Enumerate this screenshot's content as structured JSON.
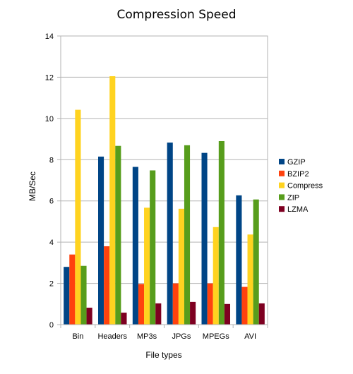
{
  "chart_data": {
    "type": "bar",
    "title": "Compression Speed",
    "xlabel": "File types",
    "ylabel": "MB/Sec",
    "ylim": [
      0,
      14
    ],
    "yticks": [
      0,
      2,
      4,
      6,
      8,
      10,
      12,
      14
    ],
    "grid": "horizontal",
    "legend_position": "right",
    "categories": [
      "Bin",
      "Headers",
      "MP3s",
      "JPGs",
      "MPEGs",
      "AVI"
    ],
    "series": [
      {
        "name": "GZIP",
        "color": "#004586",
        "values": [
          2.8,
          8.15,
          7.65,
          8.83,
          8.33,
          6.27
        ]
      },
      {
        "name": "BZIP2",
        "color": "#ff420e",
        "values": [
          3.4,
          3.8,
          1.97,
          2.0,
          2.0,
          1.83
        ]
      },
      {
        "name": "Compress",
        "color": "#ffd320",
        "values": [
          10.42,
          12.05,
          5.67,
          5.62,
          4.73,
          4.37
        ]
      },
      {
        "name": "ZIP",
        "color": "#579d1c",
        "values": [
          2.85,
          8.67,
          7.48,
          8.7,
          8.9,
          6.07
        ]
      },
      {
        "name": "LZMA",
        "color": "#7e0021",
        "values": [
          0.82,
          0.58,
          1.03,
          1.1,
          1.0,
          1.03
        ]
      }
    ]
  }
}
